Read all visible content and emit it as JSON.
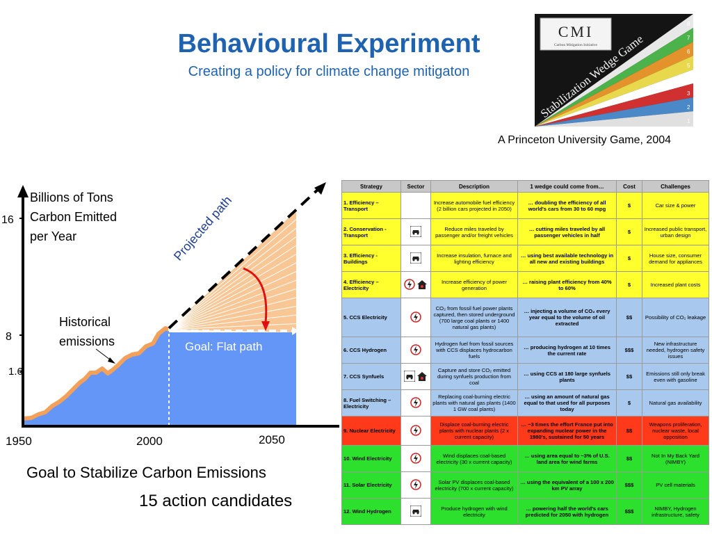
{
  "title": "Behavioural Experiment",
  "subtitle": "Creating a policy for climate change mitigaton",
  "logo": {
    "brand": "CMI",
    "brand_sub": "Carbon Mitigation Initiative",
    "game": "Stabilization Wedge Game",
    "numbers": [
      "8",
      "7",
      "6",
      "5",
      "4",
      "3",
      "2",
      "1"
    ]
  },
  "credit": "A Princeton University Game, 2004",
  "chart": {
    "y_title": "Billions of Tons  Carbon Emitted per Year",
    "y_ticks": [
      "16",
      "8",
      "1.6"
    ],
    "x_ticks": [
      "1950",
      "2000",
      "2050"
    ],
    "label_projected": "Projected path",
    "label_historical": "Historical emissions",
    "label_goal": "Goal: Flat path"
  },
  "goal_caption": "Goal to Stabilize Carbon Emissions",
  "action_caption": "15 action candidates",
  "table": {
    "headers": [
      "Strategy",
      "Sector",
      "Description",
      "1 wedge could come from…",
      "Cost",
      "Challenges"
    ],
    "rows": [
      {
        "strategy": "1.  Efficiency – Transport",
        "icons": [],
        "color": "#ffff2e",
        "description": "Increase automobile fuel efficiency (2 billion cars projected in 2050)",
        "wedge": "… doubling the efficiency of all world's cars from 30 to 60 mpg",
        "cost": "$",
        "challenges": "Car size & power"
      },
      {
        "strategy": "2.  Conservation - Transport",
        "icons": [
          "car"
        ],
        "color": "#ffff2e",
        "description": "Reduce miles traveled by passenger and/or freight vehicles",
        "wedge": "… cutting miles traveled by all passenger vehicles in half",
        "cost": "$",
        "challenges": "Increased public transport, urban design"
      },
      {
        "strategy": "3.  Efficiency - Buildings",
        "icons": [
          "car"
        ],
        "color": "#ffff2e",
        "description": "Increase insulation, furnace and lighting efficiency",
        "wedge": "… using best available technology in all new and existing buildings",
        "cost": "$",
        "challenges": "House size, consumer demand for appliances"
      },
      {
        "strategy": "4.  Efficiency – Electricity",
        "icons": [
          "bolt",
          "house"
        ],
        "color": "#ffff2e",
        "description": "Increase efficiency of power generation",
        "wedge": "… raising plant efficiency from 40% to 60%",
        "cost": "$",
        "challenges": "Increased plant costs"
      },
      {
        "strategy": "5.  CCS Electricity",
        "icons": [
          "bolt"
        ],
        "color": "#a8c8ee",
        "description": "CO₂ from fossil fuel power plants captured, then stored underground (700 large coal plants or 1400 natural gas plants)",
        "wedge": "… injecting a volume of CO₂ every year equal to the volume of oil extracted",
        "cost": "$$",
        "challenges": "Possibility of CO₂ leakage"
      },
      {
        "strategy": "6.  CCS Hydrogen",
        "icons": [
          "bolt"
        ],
        "color": "#a8c8ee",
        "description": "Hydrogen fuel from fossil sources with CCS displaces hydrocarbon fuels",
        "wedge": "… producing hydrogen at 10 times the current rate",
        "cost": "$$$",
        "challenges": "New infrastructure needed, hydrogen safety issues"
      },
      {
        "strategy": "7.  CCS Synfuels",
        "icons": [
          "car",
          "house"
        ],
        "color": "#a8c8ee",
        "description": "Capture and store CO₂ emitted during synfuels production from coal",
        "wedge": "… using CCS at 180 large synfuels plants",
        "cost": "$$",
        "challenges": "Emissions still only break even with gasoline"
      },
      {
        "strategy": "8.  Fuel Switching – Electricity",
        "icons": [
          "bolt"
        ],
        "color": "#a8c8ee",
        "description": "Replacing coal-burning electric plants with natural gas plants (1400 1 GW coal plants)",
        "wedge": "… using an amount of natural gas equal to that used for all purposes today",
        "cost": "$",
        "challenges": "Natural gas availability"
      },
      {
        "strategy": "9.  Nuclear Electricity",
        "icons": [
          "bolt"
        ],
        "color": "#ff3a1a",
        "description": "Displace coal-burning electric plants with nuclear plants (2 x current capacity)",
        "wedge": "… ~3 times the effort France put into expanding nuclear power in the 1980's, sustained for 50 years",
        "cost": "$$",
        "challenges": "Weapons proliferation, nuclear waste, local opposition"
      },
      {
        "strategy": "10. Wind Electricity",
        "icons": [
          "bolt"
        ],
        "color": "#2ee02e",
        "description": "Wind displaces coal-based electricity (30 x current capacity)",
        "wedge": "… using area equal to ~3% of U.S. land area for wind farms",
        "cost": "$$",
        "challenges": "Not In My Back Yard (NIMBY)"
      },
      {
        "strategy": "11. Solar Electricity",
        "icons": [
          "bolt"
        ],
        "color": "#2ee02e",
        "description": "Solar PV displaces coal-based electricity (700 x current capacity)",
        "wedge": "… using the equivalent of a 100 x 200 km PV array",
        "cost": "$$$",
        "challenges": "PV cell materials"
      },
      {
        "strategy": "12. Wind Hydrogen",
        "icons": [
          "car"
        ],
        "color": "#2ee02e",
        "description": "Produce hydrogen with wind electricity",
        "wedge": "… powering half the world's cars predicted for 2050 with hydrogen",
        "cost": "$$$",
        "challenges": "NIMBY, Hydrogen infrastructure, safety"
      }
    ]
  }
}
